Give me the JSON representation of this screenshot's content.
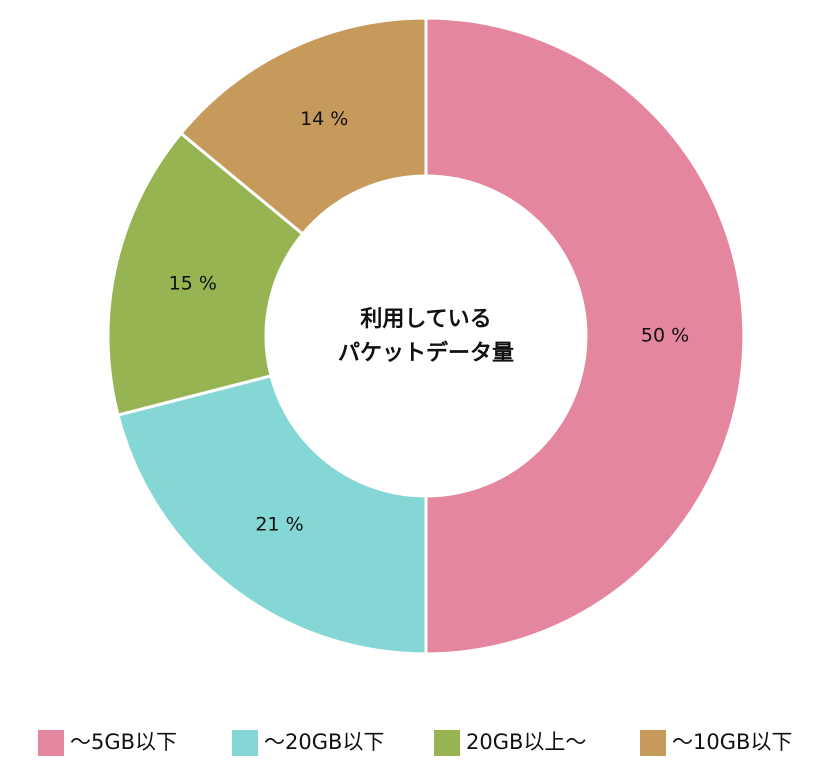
{
  "chart_data": {
    "type": "donut",
    "center_label": [
      "利用している",
      "パケットデータ量"
    ],
    "categories": [
      "〜5GB以下",
      "〜20GB以下",
      "20GB以上〜",
      "〜10GB以下"
    ],
    "values": [
      50,
      21,
      15,
      14
    ],
    "value_labels": [
      "50 %",
      "21 %",
      "15 %",
      "14 %"
    ],
    "colors": [
      "#e5869f",
      "#84d7d5",
      "#97b452",
      "#c69a5a"
    ],
    "legend": "bottom"
  }
}
